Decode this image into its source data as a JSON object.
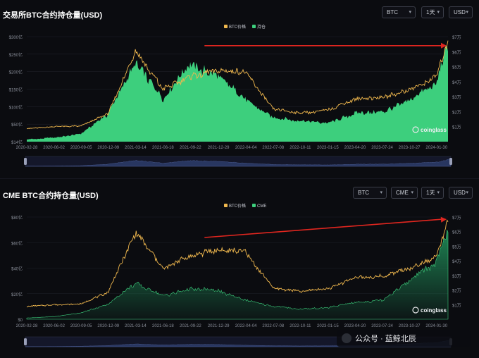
{
  "panels": [
    {
      "id": "top",
      "title": "交易所BTC合约持仓量(USD)",
      "controls": [
        {
          "value": "BTC"
        },
        {
          "value": "1天"
        },
        {
          "value": "USD"
        }
      ],
      "watermark": "coinglass"
    },
    {
      "id": "bottom",
      "title": "CME BTC合约持仓量(USD)",
      "controls": [
        {
          "value": "BTC"
        },
        {
          "value": "CME"
        },
        {
          "value": "1天"
        },
        {
          "value": "USD"
        }
      ],
      "watermark": "coinglass"
    }
  ],
  "footer_watermark": "公众号 · 蓝鲸北辰",
  "colors": {
    "price": "#f0b84e",
    "oi": "#3dcf7d",
    "cme_oi": "#1f8a57",
    "arrow": "#e0261f",
    "navigator": "#2a3a66"
  },
  "chart_data": [
    {
      "type": "area",
      "title": "交易所BTC合约持仓量(USD)",
      "x": [
        "2020-02-28",
        "2020-06-02",
        "2020-09-05",
        "2020-12-09",
        "2021-03-14",
        "2021-06-18",
        "2021-09-22",
        "2021-12-29",
        "2022-04-04",
        "2022-07-08",
        "2022-10-11",
        "2023-01-15",
        "2023-04-20",
        "2023-07-24",
        "2023-10-27",
        "2024-01-30",
        "2024-03-10"
      ],
      "x_ticks": [
        "2020-02-28",
        "2020-06-02",
        "2020-09-05",
        "2020-12-09",
        "2021-03-14",
        "2021-06-18",
        "2021-09-22",
        "2021-12-29",
        "2022-04-04",
        "2022-07-08",
        "2022-10-11",
        "2023-01-15",
        "2023-04-20",
        "2023-07-24",
        "2023-10-27",
        "2024-01-30"
      ],
      "y_left_ticks": [
        "$14亿",
        "$50亿",
        "$100亿",
        "$150亿",
        "$200亿",
        "$250亿",
        "$300亿"
      ],
      "y_right_ticks": [
        "$1万",
        "$2万",
        "$3万",
        "$4万",
        "$5万",
        "$6万",
        "$7万"
      ],
      "ylim_left": [
        14,
        300
      ],
      "ylim_right": [
        0,
        70000
      ],
      "legend": [
        "BTC价格",
        "持仓"
      ],
      "legend_position": "top-center",
      "series": [
        {
          "name": "持仓",
          "axis": "left",
          "values": [
            20,
            25,
            35,
            90,
            230,
            130,
            225,
            190,
            130,
            80,
            70,
            65,
            90,
            95,
            125,
            175,
            280
          ]
        },
        {
          "name": "BTC价格",
          "axis": "right",
          "values": [
            8700,
            10000,
            10500,
            18700,
            60000,
            35000,
            43500,
            47500,
            46000,
            21500,
            19000,
            21000,
            28500,
            29500,
            34500,
            43000,
            68500
          ]
        }
      ],
      "annotations": [
        "arrow from 2021-11 peak to 2024-03 high"
      ]
    },
    {
      "type": "area",
      "title": "CME BTC合约持仓量(USD)",
      "x": [
        "2020-02-28",
        "2020-06-02",
        "2020-09-05",
        "2020-12-09",
        "2021-03-14",
        "2021-06-18",
        "2021-09-22",
        "2021-12-29",
        "2022-04-04",
        "2022-07-08",
        "2022-10-11",
        "2023-01-15",
        "2023-04-20",
        "2023-07-24",
        "2023-10-27",
        "2024-01-30",
        "2024-03-10"
      ],
      "x_ticks": [
        "2020-02-28",
        "2020-06-02",
        "2020-09-05",
        "2020-12-09",
        "2021-03-14",
        "2021-06-18",
        "2021-09-22",
        "2021-12-29",
        "2022-04-04",
        "2022-07-08",
        "2022-10-11",
        "2023-01-15",
        "2023-04-20",
        "2023-07-24",
        "2023-10-27",
        "2024-01-30"
      ],
      "y_left_ticks": [
        "$0",
        "$20亿",
        "$40亿",
        "$60亿",
        "$80亿"
      ],
      "y_right_ticks": [
        "$1万",
        "$2万",
        "$3万",
        "$4万",
        "$5万",
        "$6万",
        "$7万"
      ],
      "ylim_left": [
        0,
        80
      ],
      "ylim_right": [
        0,
        70000
      ],
      "legend": [
        "BTC价格",
        "CME"
      ],
      "legend_position": "top-center",
      "series": [
        {
          "name": "CME",
          "axis": "left",
          "values": [
            1,
            2,
            5,
            12,
            28,
            18,
            24,
            22,
            15,
            10,
            8,
            9,
            13,
            15,
            30,
            45,
            72
          ]
        },
        {
          "name": "BTC价格",
          "axis": "right",
          "values": [
            8700,
            10000,
            10500,
            18700,
            60000,
            35000,
            43500,
            47500,
            46000,
            21500,
            19000,
            21000,
            28500,
            29500,
            34500,
            43000,
            68500
          ]
        }
      ],
      "annotations": [
        "arrow from 2021-11 peak to 2024-03 high"
      ]
    }
  ]
}
